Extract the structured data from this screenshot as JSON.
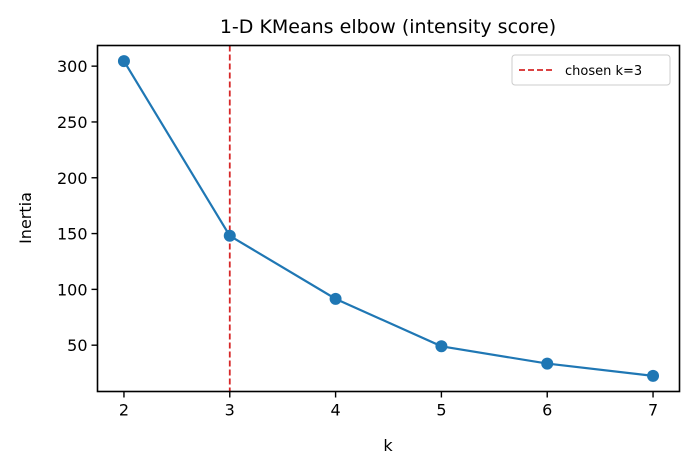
{
  "chart_data": {
    "type": "line",
    "title": "1-D KMeans elbow (intensity score)",
    "xlabel": "k",
    "ylabel": "Inertia",
    "x": [
      2,
      3,
      4,
      5,
      6,
      7
    ],
    "series": [
      {
        "name": "inertia",
        "values": [
          304.5,
          148,
          91.5,
          49,
          33.5,
          22.5
        ],
        "color": "#1f77b4",
        "marker": "circle"
      }
    ],
    "xticks": [
      2,
      3,
      4,
      5,
      6,
      7
    ],
    "yticks": [
      50,
      100,
      150,
      200,
      250,
      300
    ],
    "xlim": [
      1.75,
      7.25
    ],
    "ylim": [
      8.5,
      318.5
    ],
    "annotations": [
      {
        "type": "vline",
        "x": 3,
        "style": "dashed",
        "color": "#d62728",
        "label": "chosen k=3"
      }
    ],
    "legend": {
      "position": "upper right",
      "entries": [
        "chosen k=3"
      ]
    },
    "grid": false
  }
}
